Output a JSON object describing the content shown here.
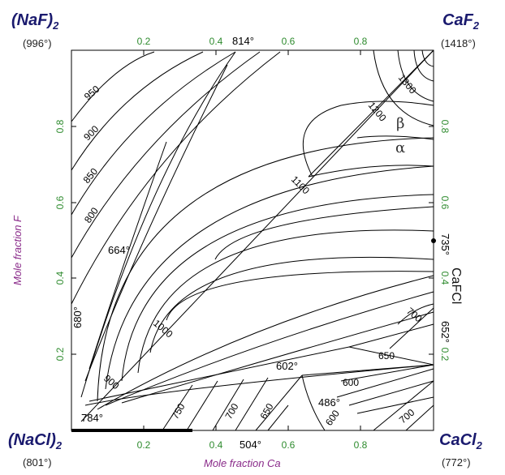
{
  "corners": {
    "top_left": {
      "name": "(NaF)",
      "sub": "2",
      "temp": "(996°)"
    },
    "top_right": {
      "name": "CaF",
      "sub": "2",
      "temp": "(1418°)"
    },
    "bottom_left": {
      "name": "(NaCl)",
      "sub": "2",
      "temp": "(801°)"
    },
    "bottom_right": {
      "name": "CaCl",
      "sub": "2",
      "temp": "(772°)"
    }
  },
  "axes": {
    "x_title": "Mole fraction Ca",
    "y_title": "Mole fraction F",
    "x_ticks": [
      "0.2",
      "0.4",
      "0.6",
      "0.8"
    ],
    "y_ticks": [
      "0.2",
      "0.4",
      "0.6",
      "0.8"
    ],
    "tick_color": "#2e8b2e",
    "title_color": "#8a2b8a"
  },
  "compound": {
    "label": "CaFCl",
    "temp": "735°"
  },
  "phases": {
    "beta": "β",
    "alpha": "α"
  },
  "isotherm_labels": [
    "950",
    "900",
    "850",
    "800",
    "1300",
    "1200",
    "1100",
    "1000",
    "900",
    "750",
    "700",
    "650",
    "600",
    "700",
    "650",
    "600",
    "700",
    "600"
  ],
  "special_points": [
    "814°",
    "664°",
    "680°",
    "652°",
    "602°",
    "486°",
    "784°",
    "504°"
  ],
  "chart_data": {
    "type": "phase_diagram",
    "x_axis": "Mole fraction Ca",
    "y_axis": "Mole fraction F",
    "xlim": [
      0,
      1
    ],
    "ylim": [
      0,
      1
    ],
    "isotherms_C": [
      600,
      650,
      700,
      750,
      800,
      850,
      900,
      950,
      1000,
      1100,
      1200,
      1300
    ],
    "invariant_points_C": [
      814,
      664,
      680,
      652,
      602,
      486,
      784,
      504,
      735
    ]
  }
}
